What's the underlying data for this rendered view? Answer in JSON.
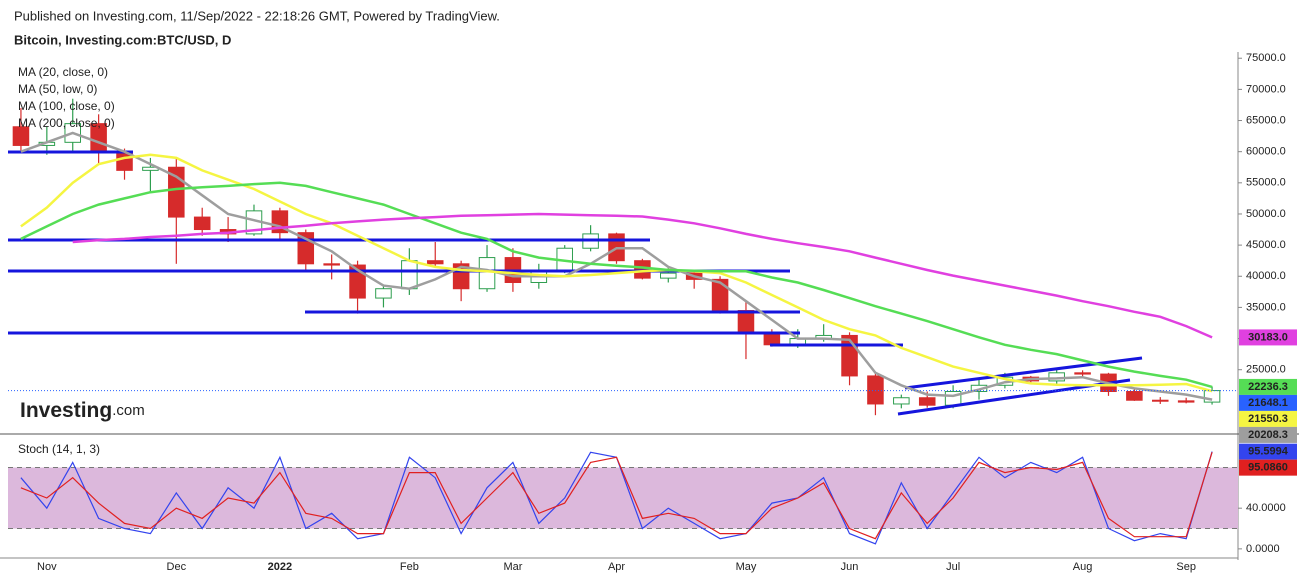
{
  "header": {
    "published": "Published on Investing.com, 11/Sep/2022 - 22:18:26 GMT, Powered by TradingView.",
    "symbol": "Bitcoin, Investing.com:BTC/USD, D",
    "logo_bold": "Investing",
    "logo_suffix": ".com"
  },
  "chart_data": [
    {
      "type": "candlestick",
      "categories": [
        null,
        "Nov",
        null,
        null,
        null,
        null,
        "Dec",
        null,
        null,
        null,
        "2022",
        null,
        null,
        null,
        null,
        "Feb",
        null,
        null,
        null,
        "Mar",
        null,
        null,
        null,
        "Apr",
        null,
        null,
        null,
        null,
        "May",
        null,
        null,
        null,
        "Jun",
        null,
        null,
        null,
        "Jul",
        null,
        null,
        null,
        null,
        "Aug",
        null,
        null,
        null,
        "Sep",
        null
      ],
      "open": [
        64000,
        61000,
        61500,
        64500,
        60000,
        57000,
        57500,
        49500,
        47500,
        46800,
        50500,
        47000,
        42000,
        41800,
        36500,
        38000,
        42500,
        42000,
        38000,
        43000,
        39000,
        41000,
        44500,
        46800,
        42500,
        39700,
        40500,
        39500,
        34500,
        31000,
        29000,
        30000,
        30500,
        24000,
        19500,
        20500,
        19300,
        21500,
        22500,
        23800,
        23200,
        24500,
        24300,
        21500,
        20100,
        20000,
        19800
      ],
      "high": [
        67000,
        64000,
        68500,
        66000,
        60500,
        59000,
        59000,
        51000,
        49500,
        51500,
        51000,
        47500,
        43500,
        42500,
        38500,
        44500,
        45500,
        42500,
        45000,
        44500,
        42000,
        45000,
        48200,
        47000,
        42800,
        41500,
        41000,
        40000,
        36000,
        31500,
        31500,
        32300,
        31000,
        24500,
        21000,
        21500,
        22500,
        23500,
        24500,
        24000,
        25200,
        24900,
        24500,
        21900,
        20600,
        20500,
        22300
      ],
      "low": [
        60000,
        59500,
        60000,
        58000,
        55500,
        53500,
        42000,
        46500,
        45500,
        46500,
        46000,
        41000,
        39500,
        34000,
        35000,
        37000,
        41500,
        36000,
        37500,
        37500,
        38000,
        40500,
        44000,
        42000,
        39500,
        39000,
        38000,
        34000,
        26700,
        28700,
        28500,
        29500,
        22500,
        17700,
        18800,
        18900,
        18800,
        20200,
        22000,
        22700,
        22600,
        23800,
        20800,
        20000,
        19500,
        19600,
        19400
      ],
      "close": [
        61000,
        61500,
        64500,
        60000,
        57000,
        57500,
        49500,
        47500,
        46800,
        50500,
        47000,
        42000,
        41800,
        36500,
        38000,
        42500,
        42000,
        38000,
        43000,
        39000,
        41000,
        44500,
        46800,
        42500,
        39700,
        40500,
        39500,
        34500,
        31000,
        29000,
        30000,
        30500,
        24000,
        19500,
        20500,
        19300,
        21500,
        22500,
        23800,
        23200,
        24500,
        24300,
        21500,
        20100,
        20000,
        19800,
        21648.1
      ],
      "value_label": "21648.1",
      "color_up": "#2e9e4f",
      "color_down": "#d62b2b",
      "price_color": "#2962ff",
      "series": [
        {
          "name": "MA (20, close, 0)",
          "color": "#9e9e9e",
          "values": [
            60000,
            61500,
            63000,
            61500,
            60000,
            58000,
            56000,
            53000,
            50000,
            49000,
            48000,
            46000,
            44000,
            41000,
            38500,
            38000,
            39500,
            41500,
            41000,
            40000,
            40000,
            40000,
            42000,
            44500,
            44500,
            41500,
            40000,
            39000,
            36000,
            33000,
            30000,
            30000,
            29800,
            24500,
            22500,
            21000,
            20800,
            21800,
            23000,
            23500,
            23600,
            23800,
            22800,
            22000,
            21500,
            21000,
            20208.3
          ],
          "value_label": "20208.3"
        },
        {
          "name": "MA (50, low, 0)",
          "color": "#f5f542",
          "values": [
            48000,
            51000,
            55000,
            58000,
            59000,
            59500,
            59000,
            57000,
            55500,
            54000,
            52000,
            50000,
            48500,
            46500,
            44500,
            42500,
            41500,
            41000,
            40800,
            40500,
            40200,
            40000,
            40200,
            40500,
            40800,
            41000,
            40800,
            40500,
            39000,
            37000,
            35000,
            33000,
            31500,
            30500,
            28500,
            27000,
            25500,
            24500,
            23500,
            22800,
            22600,
            22500,
            22500,
            22500,
            22600,
            22700,
            21550.3
          ],
          "value_label": "21550.3"
        },
        {
          "name": "MA (100, close, 0)",
          "color": "#55dd55",
          "values": [
            46000,
            48000,
            50000,
            51500,
            52500,
            53500,
            54000,
            54300,
            54500,
            54800,
            55000,
            54500,
            53500,
            52500,
            51500,
            50000,
            48500,
            47000,
            46000,
            44000,
            43000,
            42500,
            42000,
            41700,
            41400,
            41000,
            40900,
            40800,
            40800,
            39800,
            39000,
            37800,
            36500,
            35200,
            34000,
            32800,
            31500,
            30200,
            29000,
            28200,
            27500,
            26500,
            25500,
            24700,
            24000,
            23400,
            22236.3
          ],
          "value_label": "22236.3"
        },
        {
          "name": "MA (200, close, 0)",
          "color": "#e040e0",
          "values": [
            null,
            null,
            45500,
            45800,
            46000,
            46300,
            46500,
            46800,
            47000,
            47400,
            47800,
            48100,
            48500,
            48800,
            49100,
            49300,
            49500,
            49700,
            49800,
            49900,
            50000,
            49900,
            49800,
            49700,
            49600,
            49100,
            48500,
            47700,
            46800,
            46000,
            45300,
            44700,
            44000,
            43000,
            42000,
            41000,
            40100,
            39300,
            38500,
            37700,
            36900,
            36000,
            35200,
            34300,
            33500,
            32000,
            30183
          ],
          "value_label": "30183.0"
        }
      ],
      "ylim": [
        15000,
        76000
      ],
      "yticks": [
        {
          "value": 25000,
          "label": "25000.0"
        },
        {
          "value": 30000,
          "label": "30000.0"
        },
        {
          "value": 35000,
          "label": "35000.0"
        },
        {
          "value": 40000,
          "label": "40000.0"
        },
        {
          "value": 45000,
          "label": "45000.0"
        },
        {
          "value": 50000,
          "label": "50000.0"
        },
        {
          "value": 55000,
          "label": "55000.0"
        },
        {
          "value": 60000,
          "label": "60000.0"
        },
        {
          "value": 65000,
          "label": "65000.0"
        },
        {
          "value": 70000,
          "label": "70000.0"
        },
        {
          "value": 75000,
          "label": "75000.0"
        }
      ]
    },
    {
      "type": "line",
      "title": "Stoch (14, 1, 3)",
      "series": [
        {
          "color": "#3344ee",
          "values": [
            70,
            40,
            85,
            30,
            20,
            15,
            55,
            20,
            60,
            40,
            90,
            20,
            35,
            10,
            15,
            90,
            70,
            15,
            60,
            85,
            25,
            50,
            95,
            90,
            20,
            40,
            25,
            10,
            15,
            45,
            50,
            70,
            15,
            5,
            65,
            20,
            55,
            90,
            70,
            85,
            75,
            90,
            20,
            8,
            15,
            10,
            95.5994
          ],
          "value_label": "95.5994"
        },
        {
          "color": "#e02020",
          "values": [
            60,
            50,
            70,
            45,
            25,
            20,
            40,
            30,
            50,
            45,
            75,
            35,
            30,
            15,
            15,
            75,
            75,
            25,
            50,
            75,
            35,
            45,
            85,
            90,
            30,
            35,
            30,
            15,
            15,
            40,
            50,
            65,
            20,
            10,
            55,
            25,
            50,
            85,
            75,
            80,
            78,
            85,
            30,
            12,
            12,
            12,
            95.086
          ],
          "value_label": "95.0860"
        }
      ],
      "bands": [
        20,
        80
      ],
      "band_color": "#dcb8dc",
      "ylim": [
        -8,
        110
      ],
      "yticks": [
        {
          "value": 0,
          "label": "0.0000"
        },
        {
          "value": 40,
          "label": "40.0000"
        }
      ]
    }
  ]
}
